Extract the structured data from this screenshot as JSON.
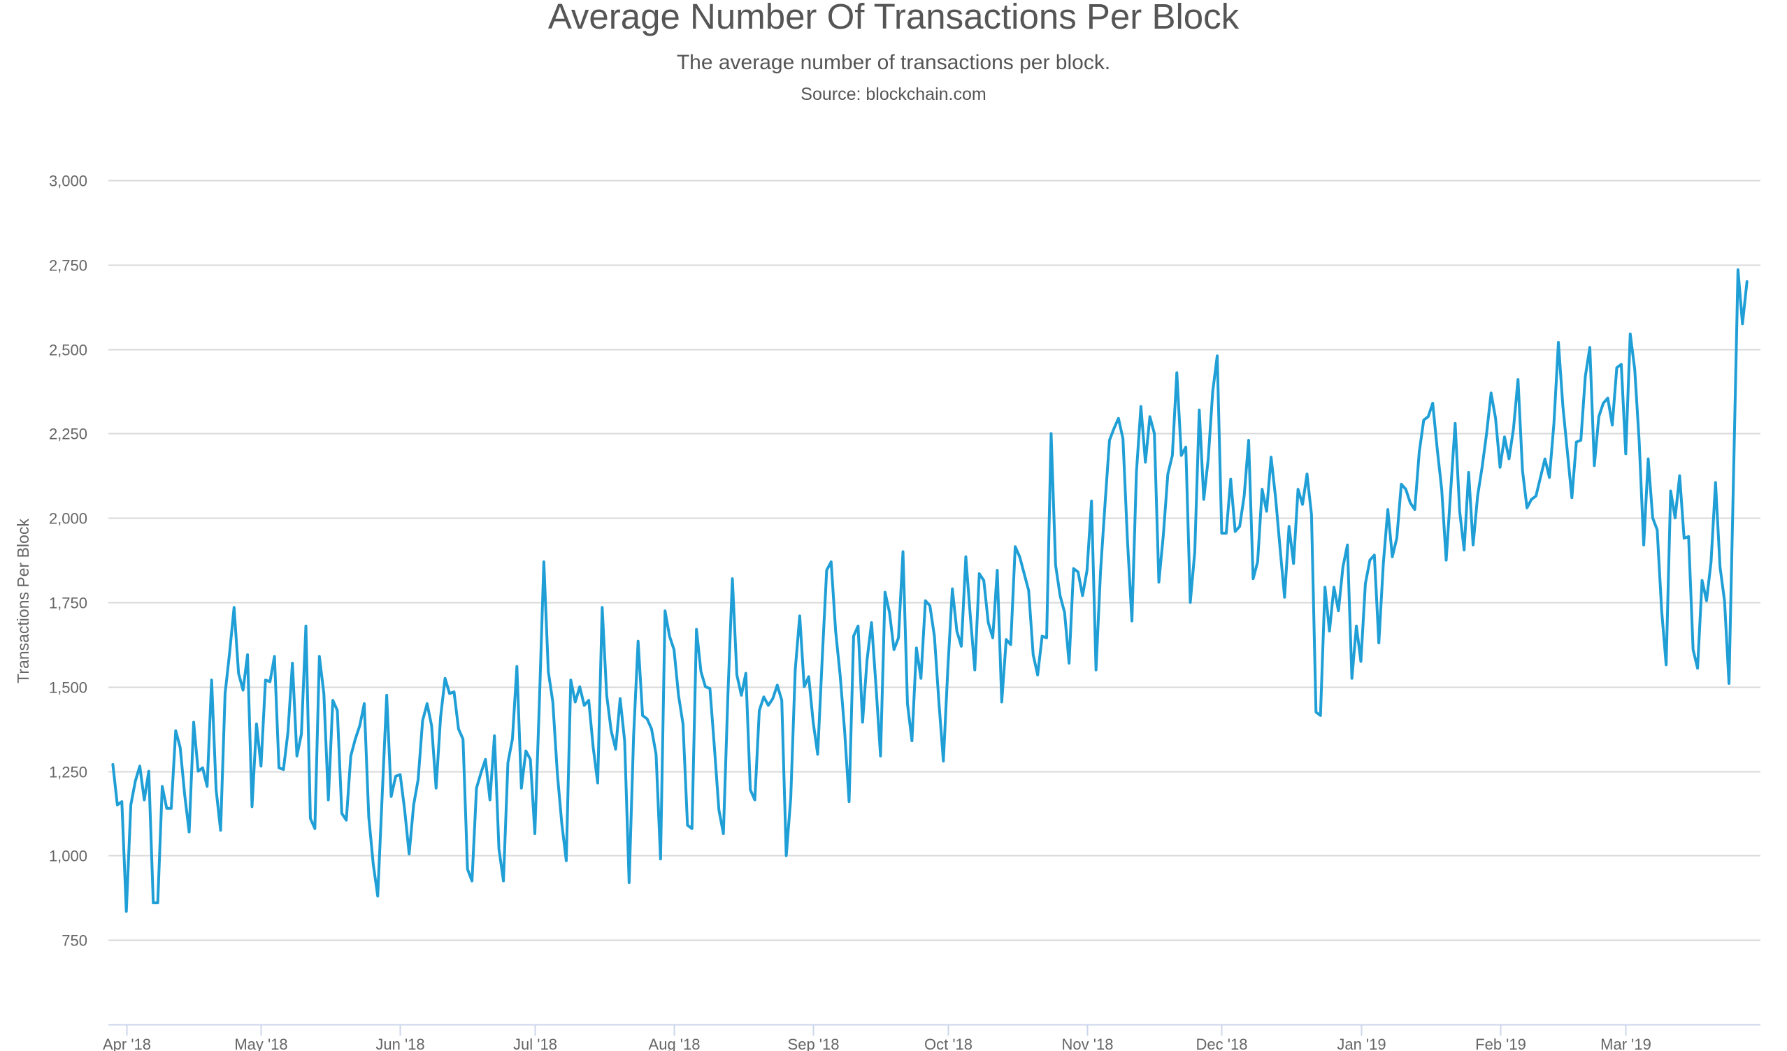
{
  "header": {
    "title": "Average Number Of Transactions Per Block",
    "subtitle": "The average number of transactions per block.",
    "source": "Source: blockchain.com"
  },
  "chart_data": {
    "type": "line",
    "title": "Average Number Of Transactions Per Block",
    "subtitle": "The average number of transactions per block.",
    "xlabel": "",
    "ylabel": "Transactions Per Block",
    "ylim": [
      500,
      3000
    ],
    "xlim": [
      "2018-03-28",
      "2019-03-31"
    ],
    "y_ticks": [
      750,
      1000,
      1250,
      1500,
      1750,
      2000,
      2250,
      2500,
      2750,
      3000
    ],
    "y_tick_labels": [
      "750",
      "1,000",
      "1,250",
      "1,500",
      "1,750",
      "2,000",
      "2,250",
      "2,500",
      "2,750",
      "3,000"
    ],
    "x_ticks": [
      {
        "date": "2018-04-01",
        "label": "Apr '18"
      },
      {
        "date": "2018-05-01",
        "label": "May '18"
      },
      {
        "date": "2018-06-01",
        "label": "Jun '18"
      },
      {
        "date": "2018-07-01",
        "label": "Jul '18"
      },
      {
        "date": "2018-08-01",
        "label": "Aug '18"
      },
      {
        "date": "2018-09-01",
        "label": "Sep '18"
      },
      {
        "date": "2018-10-01",
        "label": "Oct '18"
      },
      {
        "date": "2018-11-01",
        "label": "Nov '18"
      },
      {
        "date": "2018-12-01",
        "label": "Dec '18"
      },
      {
        "date": "2019-01-01",
        "label": "Jan '19"
      },
      {
        "date": "2019-02-01",
        "label": "Feb '19"
      },
      {
        "date": "2019-03-01",
        "label": "Mar '19"
      }
    ],
    "grid": true,
    "legend": "none",
    "line_color": "#1f9fd6",
    "series": [
      {
        "start_date": "2018-03-29",
        "values": [
          1270,
          1150,
          1160,
          835,
          1150,
          1220,
          1265,
          1165,
          1250,
          860,
          860,
          1205,
          1140,
          1140,
          1370,
          1320,
          1180,
          1070,
          1395,
          1250,
          1260,
          1205,
          1520,
          1195,
          1075,
          1480,
          1600,
          1735,
          1540,
          1490,
          1595,
          1145,
          1390,
          1265,
          1520,
          1515,
          1590,
          1260,
          1255,
          1365,
          1570,
          1295,
          1360,
          1680,
          1110,
          1080,
          1590,
          1480,
          1165,
          1460,
          1430,
          1125,
          1105,
          1295,
          1345,
          1385,
          1450,
          1115,
          975,
          880,
          1180,
          1475,
          1175,
          1235,
          1240,
          1135,
          1005,
          1150,
          1225,
          1400,
          1450,
          1385,
          1200,
          1410,
          1525,
          1480,
          1485,
          1375,
          1345,
          960,
          925,
          1200,
          1245,
          1285,
          1165,
          1355,
          1020,
          925,
          1275,
          1345,
          1560,
          1200,
          1310,
          1285,
          1065,
          1450,
          1870,
          1545,
          1455,
          1245,
          1095,
          985,
          1520,
          1455,
          1500,
          1445,
          1460,
          1320,
          1215,
          1735,
          1475,
          1370,
          1315,
          1465,
          1340,
          920,
          1355,
          1635,
          1415,
          1405,
          1375,
          1300,
          990,
          1725,
          1650,
          1610,
          1475,
          1390,
          1090,
          1080,
          1670,
          1545,
          1500,
          1495,
          1320,
          1135,
          1065,
          1475,
          1820,
          1535,
          1475,
          1540,
          1195,
          1165,
          1430,
          1470,
          1445,
          1465,
          1505,
          1460,
          1000,
          1170,
          1550,
          1710,
          1500,
          1530,
          1395,
          1300,
          1580,
          1845,
          1870,
          1665,
          1535,
          1370,
          1160,
          1650,
          1680,
          1395,
          1580,
          1690,
          1500,
          1295,
          1780,
          1720,
          1610,
          1645,
          1900,
          1450,
          1340,
          1615,
          1525,
          1755,
          1740,
          1650,
          1455,
          1280,
          1555,
          1790,
          1665,
          1620,
          1885,
          1710,
          1550,
          1835,
          1815,
          1690,
          1645,
          1845,
          1455,
          1640,
          1625,
          1915,
          1885,
          1835,
          1785,
          1595,
          1535,
          1650,
          1645,
          2250,
          1860,
          1770,
          1720,
          1570,
          1850,
          1840,
          1770,
          1845,
          2050,
          1550,
          1840,
          2040,
          2230,
          2265,
          2295,
          2235,
          1935,
          1695,
          2135,
          2330,
          2165,
          2300,
          2250,
          1810,
          1950,
          2130,
          2185,
          2430,
          2185,
          2210,
          1750,
          1900,
          2320,
          2055,
          2175,
          2375,
          2480,
          1955,
          1955,
          2115,
          1960,
          1975,
          2065,
          2230,
          1820,
          1870,
          2085,
          2020,
          2180,
          2060,
          1910,
          1765,
          1975,
          1865,
          2085,
          2040,
          2130,
          2010,
          1425,
          1415,
          1795,
          1665,
          1795,
          1725,
          1855,
          1920,
          1525,
          1680,
          1575,
          1805,
          1875,
          1890,
          1630,
          1865,
          2025,
          1885,
          1940,
          2100,
          2085,
          2045,
          2025,
          2195,
          2290,
          2300,
          2340,
          2205,
          2085,
          1875,
          2080,
          2280,
          2020,
          1905,
          2135,
          1920,
          2065,
          2150,
          2250,
          2370,
          2295,
          2150,
          2240,
          2175,
          2265,
          2410,
          2140,
          2030,
          2055,
          2065,
          2120,
          2175,
          2120,
          2280,
          2520,
          2330,
          2195,
          2060,
          2225,
          2230,
          2420,
          2505,
          2155,
          2300,
          2340,
          2355,
          2275,
          2445,
          2455,
          2190,
          2545,
          2440,
          2225,
          1920,
          2175,
          2000,
          1965,
          1725,
          1565,
          2080,
          2000,
          2125,
          1940,
          1945,
          1610,
          1555,
          1815,
          1755,
          1870,
          2105,
          1855,
          1755,
          1510,
          2120,
          2735,
          2575,
          2700
        ]
      }
    ]
  }
}
